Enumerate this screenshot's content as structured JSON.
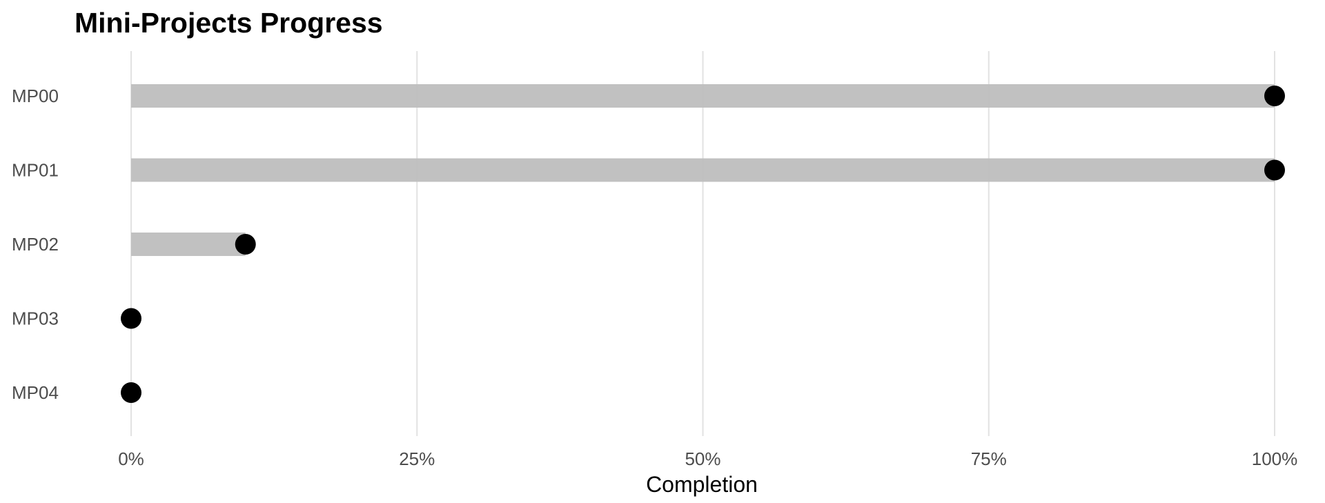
{
  "chart_data": {
    "type": "bar",
    "title": "Mini-Projects Progress",
    "xlabel": "Completion",
    "ylabel": "",
    "categories": [
      "MP00",
      "MP01",
      "MP02",
      "MP03",
      "MP04"
    ],
    "values": [
      1.0,
      1.0,
      0.1,
      0.0,
      0.0
    ],
    "xlim": [
      0,
      1
    ],
    "x_ticks": [
      0,
      0.25,
      0.5,
      0.75,
      1.0
    ],
    "x_tick_labels": [
      "0%",
      "25%",
      "50%",
      "75%",
      "100%"
    ],
    "orientation": "horizontal",
    "marker": "dot at bar end",
    "grid": true,
    "legend": "none",
    "colors": {
      "bar": "#bebebe",
      "point": "#000000",
      "grid": "#e2e2e2",
      "tick_text": "#4d4d4d",
      "title_text": "#000000"
    }
  }
}
